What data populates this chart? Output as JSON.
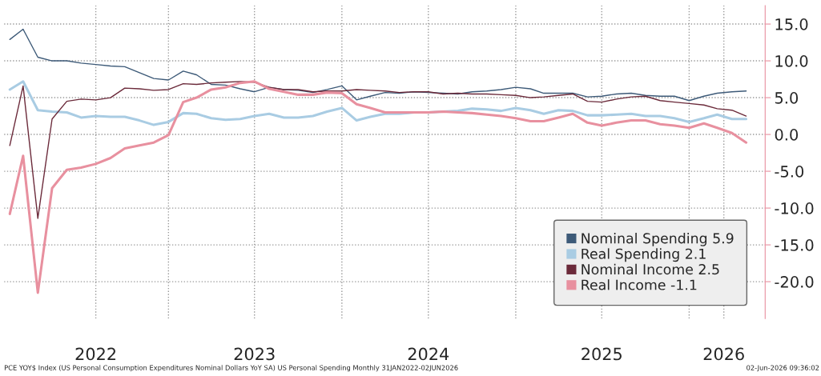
{
  "chart_data": {
    "type": "line",
    "x": [
      "2022-02",
      "2022-03",
      "2022-04",
      "2022-05",
      "2022-06",
      "2022-07",
      "2022-08",
      "2022-09",
      "2022-10",
      "2022-11",
      "2022-12",
      "2023-01",
      "2023-02",
      "2023-03",
      "2023-04",
      "2023-05",
      "2023-06",
      "2023-07",
      "2023-08",
      "2023-09",
      "2023-10",
      "2023-11",
      "2023-12",
      "2024-01",
      "2024-02",
      "2024-03",
      "2024-04",
      "2024-05",
      "2024-06",
      "2024-07",
      "2024-08",
      "2024-09",
      "2024-10",
      "2024-11",
      "2024-12",
      "2025-01",
      "2025-02",
      "2025-03",
      "2025-04",
      "2025-05",
      "2025-06",
      "2025-07",
      "2025-08",
      "2025-09",
      "2025-10",
      "2025-11",
      "2025-12",
      "2026-01",
      "2026-02",
      "2026-03",
      "2026-04",
      "2026-05"
    ],
    "series": [
      {
        "name": "Nominal Spending 5.9",
        "color": "#3d5a78",
        "values": [
          12.9,
          14.3,
          10.5,
          10.0,
          10.0,
          9.7,
          9.5,
          9.3,
          9.2,
          8.4,
          7.6,
          7.4,
          8.6,
          8.1,
          6.8,
          6.7,
          6.2,
          5.8,
          6.4,
          6.1,
          6.0,
          5.7,
          6.1,
          6.6,
          4.7,
          5.2,
          5.7,
          5.6,
          5.8,
          5.7,
          5.6,
          5.5,
          5.8,
          5.9,
          6.1,
          6.4,
          6.2,
          5.6,
          5.6,
          5.6,
          5.1,
          5.2,
          5.5,
          5.6,
          5.3,
          5.2,
          5.2,
          4.6,
          5.2,
          5.6,
          5.8,
          5.9
        ]
      },
      {
        "name": "Real Spending 2.1",
        "color": "#a9cce3",
        "values": [
          6.1,
          7.2,
          3.3,
          3.1,
          3.0,
          2.3,
          2.5,
          2.4,
          2.4,
          1.9,
          1.3,
          1.7,
          2.9,
          2.8,
          2.2,
          2.0,
          2.1,
          2.5,
          2.8,
          2.3,
          2.3,
          2.5,
          3.1,
          3.6,
          1.9,
          2.4,
          2.8,
          2.8,
          3.0,
          3.0,
          3.1,
          3.2,
          3.5,
          3.4,
          3.2,
          3.6,
          3.3,
          2.8,
          3.3,
          3.2,
          2.6,
          2.6,
          2.7,
          2.8,
          2.5,
          2.5,
          2.2,
          1.7,
          2.2,
          2.7,
          2.1,
          2.1
        ]
      },
      {
        "name": "Nominal Income 2.5",
        "color": "#6b2a3a",
        "values": [
          -1.5,
          6.6,
          -11.4,
          2.1,
          4.5,
          4.8,
          4.7,
          5.0,
          6.3,
          6.2,
          6.0,
          6.1,
          6.9,
          6.8,
          7.0,
          7.1,
          7.2,
          7.1,
          6.4,
          6.1,
          6.1,
          5.8,
          5.9,
          5.9,
          6.1,
          6.0,
          5.9,
          5.7,
          5.8,
          5.8,
          5.5,
          5.6,
          5.5,
          5.5,
          5.4,
          5.3,
          5.0,
          5.1,
          5.3,
          5.5,
          4.5,
          4.4,
          4.8,
          5.1,
          5.2,
          4.6,
          4.4,
          4.2,
          4.0,
          3.5,
          3.3,
          2.5
        ]
      },
      {
        "name": "Real Income -1.1",
        "color": "#e8909f",
        "values": [
          -10.8,
          -2.9,
          -21.5,
          -7.3,
          -4.8,
          -4.5,
          -4.0,
          -3.2,
          -1.9,
          -1.5,
          -1.1,
          -0.1,
          4.4,
          5.0,
          6.1,
          6.4,
          7.0,
          7.2,
          6.2,
          5.8,
          5.4,
          5.4,
          5.7,
          5.6,
          4.1,
          3.6,
          3.0,
          3.0,
          3.0,
          3.0,
          3.1,
          3.0,
          2.9,
          2.7,
          2.5,
          2.2,
          1.8,
          1.8,
          2.3,
          2.8,
          1.6,
          1.2,
          1.6,
          1.9,
          1.9,
          1.4,
          1.2,
          0.9,
          1.5,
          0.9,
          0.2,
          -1.1
        ]
      }
    ],
    "xlim": [
      "2022-01-20",
      "2026-06-10"
    ],
    "xticks": [
      {
        "value": "2022-08-01",
        "label": "2022"
      },
      {
        "value": "2023-01-01",
        "label": null
      },
      {
        "value": "2023-07-01",
        "label": "2023"
      },
      {
        "value": "2024-01-01",
        "label": null
      },
      {
        "value": "2024-07-01",
        "label": "2024"
      },
      {
        "value": "2025-01-01",
        "label": null
      },
      {
        "value": "2025-07-01",
        "label": "2025"
      },
      {
        "value": "2026-01-01",
        "label": null
      },
      {
        "value": "2026-03-15",
        "label": "2026"
      }
    ],
    "ylim": [
      -25,
      17.5
    ],
    "yticks": [
      {
        "value": 15,
        "label": "15.0"
      },
      {
        "value": 10,
        "label": "10.0"
      },
      {
        "value": 5,
        "label": "5.0"
      },
      {
        "value": 0,
        "label": "0.0"
      },
      {
        "value": -5,
        "label": "-5.0"
      },
      {
        "value": -10,
        "label": "-10.0"
      },
      {
        "value": -15,
        "label": "-15.0"
      },
      {
        "value": -20,
        "label": "-20.0"
      }
    ],
    "grid": true,
    "legend": "bottom right",
    "annotations": [
      "PCE YOY$ Index (US Personal Consumption Expenditures Nominal Dollars YoY SA) US Personal Spending Monthly 31JAN2022-02JUN2026",
      "02-Jun-2026 09:36:02"
    ]
  }
}
